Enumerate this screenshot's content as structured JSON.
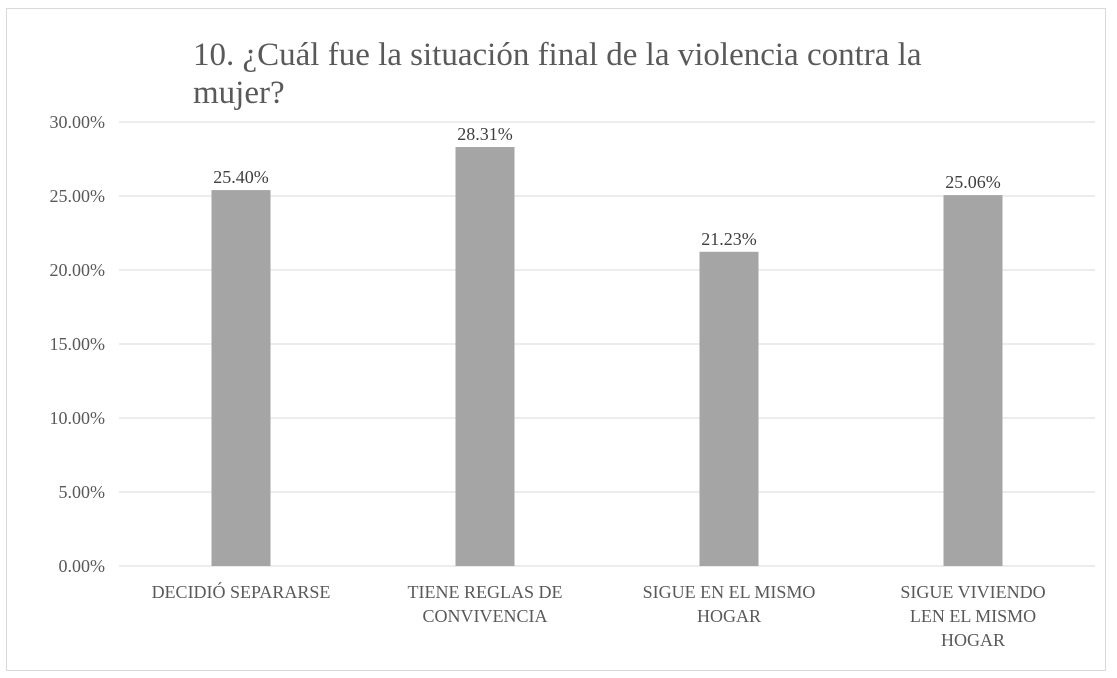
{
  "chart_data": {
    "type": "bar",
    "title_lines": [
      "10. ¿Cuál fue la situación final de la violencia contra la",
      "mujer?"
    ],
    "categories": [
      [
        "DECIDIÓ SEPARARSE"
      ],
      [
        "TIENE REGLAS DE",
        "CONVIVENCIA"
      ],
      [
        "SIGUE EN EL MISMO",
        "HOGAR"
      ],
      [
        "SIGUE VIVIENDO",
        "LEN EL MISMO",
        "HOGAR"
      ]
    ],
    "values": [
      25.4,
      28.31,
      21.23,
      25.06
    ],
    "data_labels": [
      "25.40%",
      "28.31%",
      "21.23%",
      "25.06%"
    ],
    "ylim": [
      0,
      30
    ],
    "yticks": [
      0,
      5,
      10,
      15,
      20,
      25,
      30
    ],
    "ytick_labels": [
      "0.00%",
      "5.00%",
      "10.00%",
      "15.00%",
      "20.00%",
      "25.00%",
      "30.00%"
    ],
    "bar_color": "#a5a5a5",
    "gridlines": true,
    "legend": "none"
  }
}
